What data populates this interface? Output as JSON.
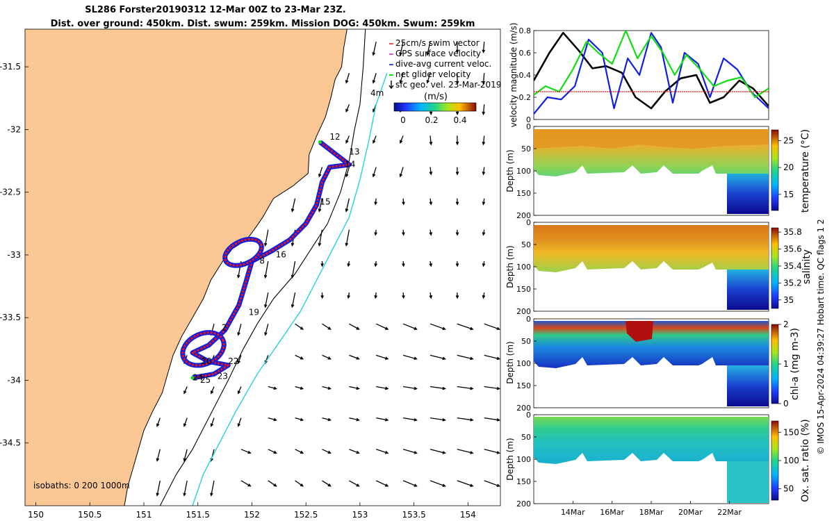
{
  "title": {
    "line1": "SL286 Forster20190312 12-Mar 00Z to 23-Mar 23Z.",
    "line2": "Dist. over ground: 450km. Dist. swum: 259km. Mission DOG: 450km. Swum: 259km"
  },
  "copyright": "© IMOS 15-Apr-2024 04:39:27 Hobart time. QC flags 1 2",
  "colors": {
    "land": "#fbc895",
    "ocean": "#ffffff",
    "coast": "#000000",
    "isobath_200": "#000000",
    "isobath_1000": "#22d3de",
    "track_red": "#ee1111",
    "track_blue": "#1020e0",
    "net_green": "#11dd11",
    "swim_red": "#dd2222",
    "black_line": "#000000"
  },
  "chart_data": [
    {
      "type": "map",
      "name": "glider-track-map",
      "xlim": [
        149.9,
        154.3
      ],
      "ylim": [
        -35,
        -31.2
      ],
      "xticks": [
        "150",
        "150.5",
        "151",
        "151.5",
        "152",
        "152.5",
        "153",
        "153.5",
        "154"
      ],
      "yticks": [
        "-31.5",
        "-32",
        "-32.5",
        "-33",
        "-33.5",
        "-34",
        "-34.5"
      ],
      "xtick_values": [
        150,
        150.5,
        151,
        151.5,
        152,
        152.5,
        153,
        153.5,
        154
      ],
      "ytick_values": [
        -31.5,
        -32,
        -32.5,
        -33,
        -33.5,
        -34,
        -34.5
      ],
      "legend": [
        {
          "label": "25cm/s swim vector",
          "color": "#dd2222",
          "symbol": "line"
        },
        {
          "label": "GPS surface velocity",
          "color": "#cc33cc",
          "symbol": "line"
        },
        {
          "label": "dive-avg current veloc.",
          "color": "#1020e0",
          "symbol": "line"
        },
        {
          "label": "net glider velocity",
          "color": "#11dd11",
          "symbol": "line"
        },
        {
          "label": "sfc geo. vel. 23-Mar-2019",
          "color": "#000000",
          "symbol": "arrow"
        }
      ],
      "colorbar": {
        "label": "(m/s)",
        "ticks": [
          "0",
          "0.2",
          "0.4"
        ],
        "range": [
          0,
          0.5
        ]
      },
      "isobath_text": "isobaths: 0   200  1000m",
      "isobath_labels": [
        "4m"
      ],
      "coastline": [
        [
          152.88,
          -31.2
        ],
        [
          152.85,
          -31.35
        ],
        [
          152.83,
          -31.5
        ],
        [
          152.77,
          -31.6
        ],
        [
          152.73,
          -31.75
        ],
        [
          152.68,
          -31.9
        ],
        [
          152.6,
          -32.05
        ],
        [
          152.53,
          -32.2
        ],
        [
          152.52,
          -32.35
        ],
        [
          152.38,
          -32.45
        ],
        [
          152.2,
          -32.55
        ],
        [
          152.1,
          -32.7
        ],
        [
          152.02,
          -32.8
        ],
        [
          151.95,
          -32.88
        ],
        [
          151.82,
          -32.95
        ],
        [
          151.73,
          -33.05
        ],
        [
          151.62,
          -33.2
        ],
        [
          151.55,
          -33.35
        ],
        [
          151.45,
          -33.5
        ],
        [
          151.35,
          -33.65
        ],
        [
          151.27,
          -33.8
        ],
        [
          151.22,
          -33.95
        ],
        [
          151.17,
          -34.1
        ],
        [
          151.08,
          -34.25
        ],
        [
          151.0,
          -34.4
        ],
        [
          150.95,
          -34.55
        ],
        [
          150.9,
          -34.7
        ],
        [
          150.85,
          -34.85
        ],
        [
          150.82,
          -35.0
        ]
      ],
      "isobath_200": [
        [
          153.05,
          -31.2
        ],
        [
          153.03,
          -31.5
        ],
        [
          153.0,
          -31.8
        ],
        [
          152.95,
          -32.0
        ],
        [
          152.9,
          -32.25
        ],
        [
          152.82,
          -32.5
        ],
        [
          152.7,
          -32.75
        ],
        [
          152.55,
          -32.95
        ],
        [
          152.4,
          -33.15
        ],
        [
          152.2,
          -33.35
        ],
        [
          152.05,
          -33.55
        ],
        [
          151.92,
          -33.75
        ],
        [
          151.78,
          -34.0
        ],
        [
          151.6,
          -34.3
        ],
        [
          151.45,
          -34.55
        ],
        [
          151.3,
          -34.75
        ],
        [
          151.15,
          -35.0
        ]
      ],
      "isobath_1000": [
        [
          153.25,
          -31.55
        ],
        [
          153.15,
          -31.8
        ],
        [
          153.08,
          -32.1
        ],
        [
          153.0,
          -32.4
        ],
        [
          152.9,
          -32.7
        ],
        [
          152.75,
          -32.95
        ],
        [
          152.6,
          -33.2
        ],
        [
          152.45,
          -33.45
        ],
        [
          152.25,
          -33.7
        ],
        [
          152.05,
          -33.95
        ],
        [
          151.85,
          -34.25
        ],
        [
          151.7,
          -34.5
        ],
        [
          151.55,
          -34.75
        ],
        [
          151.45,
          -35.0
        ]
      ],
      "track": [
        [
          152.63,
          -32.1
        ],
        [
          152.9,
          -32.28
        ],
        [
          152.72,
          -32.3
        ],
        [
          152.65,
          -32.42
        ],
        [
          152.6,
          -32.6
        ],
        [
          152.5,
          -32.75
        ],
        [
          152.35,
          -32.88
        ],
        [
          152.18,
          -32.97
        ],
        [
          152.0,
          -33.05
        ],
        [
          151.95,
          -33.2
        ],
        [
          151.88,
          -33.4
        ],
        [
          151.75,
          -33.6
        ],
        [
          151.6,
          -33.72
        ],
        [
          151.45,
          -33.78
        ],
        [
          151.6,
          -33.85
        ],
        [
          151.78,
          -33.88
        ],
        [
          151.65,
          -33.95
        ],
        [
          151.45,
          -33.98
        ]
      ],
      "track_loops": [
        {
          "center": [
            151.92,
            -32.98
          ],
          "rx": 0.18,
          "ry": 0.09
        },
        {
          "center": [
            151.55,
            -33.75
          ],
          "rx": 0.2,
          "ry": 0.12
        }
      ],
      "track_labels": [
        {
          "text": "12",
          "lon": 152.72,
          "lat": -32.08
        },
        {
          "text": "13",
          "lon": 152.9,
          "lat": -32.2
        },
        {
          "text": "14",
          "lon": 152.86,
          "lat": -32.3
        },
        {
          "text": "15",
          "lon": 152.63,
          "lat": -32.6
        },
        {
          "text": "16",
          "lon": 152.22,
          "lat": -33.02
        },
        {
          "text": "8",
          "lon": 152.07,
          "lat": -33.07
        },
        {
          "text": "19",
          "lon": 151.97,
          "lat": -33.48
        },
        {
          "text": "2",
          "lon": 151.72,
          "lat": -33.6
        },
        {
          "text": "20",
          "lon": 151.53,
          "lat": -33.87
        },
        {
          "text": "22",
          "lon": 151.78,
          "lat": -33.87
        },
        {
          "text": "23",
          "lon": 151.68,
          "lat": -33.99
        },
        {
          "text": "24",
          "lon": 151.45,
          "lat": -34.0
        },
        {
          "text": "25",
          "lon": 151.52,
          "lat": -34.02
        }
      ]
    },
    {
      "type": "line",
      "name": "velocity-magnitude-plot",
      "ylabel": "velocity magnitude (m/s)",
      "ylim": [
        0,
        0.8
      ],
      "yticks": [
        "0",
        "0.2",
        "0.4",
        "0.6",
        "0.8"
      ],
      "ytick_values": [
        0,
        0.2,
        0.4,
        0.6,
        0.8
      ],
      "xlim": [
        12,
        24
      ],
      "series": [
        {
          "name": "black",
          "color": "#000000",
          "x": [
            12,
            12.8,
            13.5,
            14.3,
            15,
            15.7,
            16.5,
            17.2,
            18,
            18.7,
            19.5,
            20.3,
            21,
            21.7,
            22.5,
            23.2,
            24
          ],
          "y": [
            0.35,
            0.6,
            0.78,
            0.62,
            0.46,
            0.48,
            0.42,
            0.2,
            0.1,
            0.25,
            0.37,
            0.4,
            0.15,
            0.2,
            0.35,
            0.28,
            0.12
          ]
        },
        {
          "name": "blue",
          "color": "#1020e0",
          "x": [
            12,
            12.7,
            13.4,
            14.1,
            14.8,
            15.5,
            16.1,
            16.8,
            17.4,
            18,
            18.5,
            19.1,
            19.7,
            20.4,
            21,
            21.7,
            22.4,
            23.1,
            23.7,
            24
          ],
          "y": [
            0.05,
            0.2,
            0.18,
            0.3,
            0.72,
            0.6,
            0.1,
            0.55,
            0.4,
            0.78,
            0.65,
            0.15,
            0.6,
            0.5,
            0.2,
            0.55,
            0.45,
            0.25,
            0.15,
            0.1
          ]
        },
        {
          "name": "green",
          "color": "#11dd11",
          "x": [
            12,
            12.6,
            13.3,
            14,
            14.7,
            15.3,
            16,
            16.7,
            17.3,
            18,
            18.6,
            19.2,
            19.8,
            20.5,
            21.2,
            21.9,
            22.6,
            23.3,
            24
          ],
          "y": [
            0.22,
            0.3,
            0.25,
            0.45,
            0.7,
            0.6,
            0.5,
            0.8,
            0.55,
            0.75,
            0.6,
            0.4,
            0.58,
            0.45,
            0.3,
            0.35,
            0.38,
            0.2,
            0.28
          ]
        },
        {
          "name": "red",
          "color": "#ee1111",
          "x": [
            12,
            24
          ],
          "y": [
            0.25,
            0.25
          ]
        }
      ]
    },
    {
      "type": "heatmap",
      "name": "temperature-section",
      "ylabel": "Depth (m)",
      "ylim": [
        200,
        0
      ],
      "yticks": [
        "0",
        "50",
        "100",
        "150",
        "200"
      ],
      "ytick_values": [
        0,
        50,
        100,
        150,
        200
      ],
      "colorbar_label": "temperature (°C)",
      "colorbar_ticks": [
        "25",
        "20",
        "15"
      ],
      "colorbar_tick_values": [
        25,
        20,
        15
      ],
      "crange": [
        12,
        27
      ]
    },
    {
      "type": "heatmap",
      "name": "salinity-section",
      "ylabel": "Depth (m)",
      "ylim": [
        200,
        0
      ],
      "yticks": [
        "0",
        "50",
        "100",
        "150",
        "200"
      ],
      "ytick_values": [
        0,
        50,
        100,
        150,
        200
      ],
      "colorbar_label": "salinity",
      "colorbar_ticks": [
        "35.8",
        "35.6",
        "35.4",
        "35.2",
        "35"
      ],
      "colorbar_tick_values": [
        35.8,
        35.6,
        35.4,
        35.2,
        35.0
      ],
      "crange": [
        34.9,
        35.85
      ]
    },
    {
      "type": "heatmap",
      "name": "chla-section",
      "ylabel": "Depth (m)",
      "ylim": [
        200,
        0
      ],
      "yticks": [
        "0",
        "50",
        "100",
        "150",
        "200"
      ],
      "ytick_values": [
        0,
        50,
        100,
        150,
        200
      ],
      "colorbar_label": "chl-a (mg m-3)",
      "colorbar_ticks": [
        "2",
        "1",
        "0"
      ],
      "colorbar_tick_values": [
        2,
        1,
        0
      ],
      "crange": [
        0,
        2
      ]
    },
    {
      "type": "heatmap",
      "name": "oxygen-section",
      "ylabel": "Depth (m)",
      "ylim": [
        200,
        0
      ],
      "yticks": [
        "0",
        "50",
        "100",
        "150",
        "200"
      ],
      "ytick_values": [
        0,
        50,
        100,
        150,
        200
      ],
      "colorbar_label": "Ox. sat. ratio (%)",
      "colorbar_ticks": [
        "150",
        "100",
        "50"
      ],
      "colorbar_tick_values": [
        150,
        100,
        50
      ],
      "crange": [
        30,
        170
      ],
      "xticks": [
        "14Mar",
        "16Mar",
        "18Mar",
        "20Mar",
        "22Mar"
      ],
      "xtick_values": [
        14,
        16,
        18,
        20,
        22
      ]
    }
  ]
}
